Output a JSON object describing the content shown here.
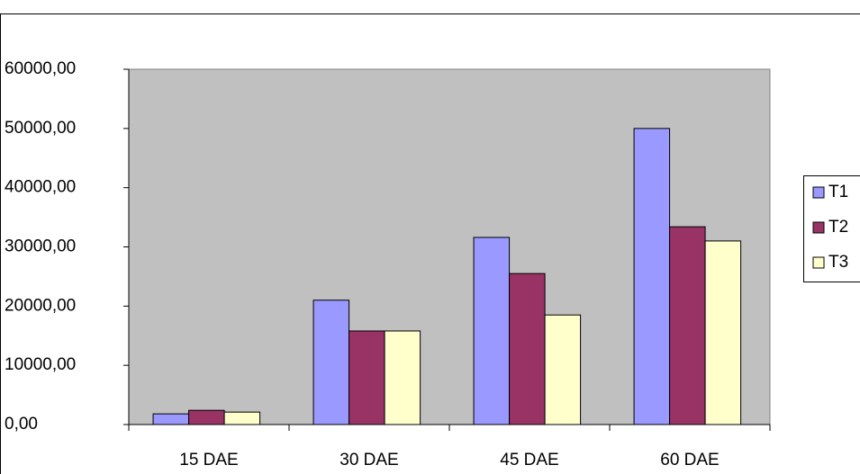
{
  "chart_data": {
    "type": "bar",
    "categories": [
      "15 DAE",
      "30 DAE",
      "45 DAE",
      "60 DAE"
    ],
    "series": [
      {
        "name": "T1",
        "color": "#9999ff",
        "values": [
          1800,
          21000,
          31600,
          50000
        ]
      },
      {
        "name": "T2",
        "color": "#993366",
        "values": [
          2400,
          15800,
          25500,
          33400
        ]
      },
      {
        "name": "T3",
        "color": "#ffffcc",
        "values": [
          2100,
          15800,
          18500,
          31000
        ]
      }
    ],
    "ylim": [
      0,
      60000
    ],
    "yticks": [
      {
        "value": 0,
        "label": "0,00"
      },
      {
        "value": 10000,
        "label": "10000,00"
      },
      {
        "value": 20000,
        "label": "20000,00"
      },
      {
        "value": 30000,
        "label": "30000,00"
      },
      {
        "value": 40000,
        "label": "40000,00"
      },
      {
        "value": 50000,
        "label": "50000,00"
      },
      {
        "value": 60000,
        "label": "60000,00"
      }
    ],
    "grid": false,
    "plot_background": "#c0c0c0",
    "legend": "right"
  }
}
